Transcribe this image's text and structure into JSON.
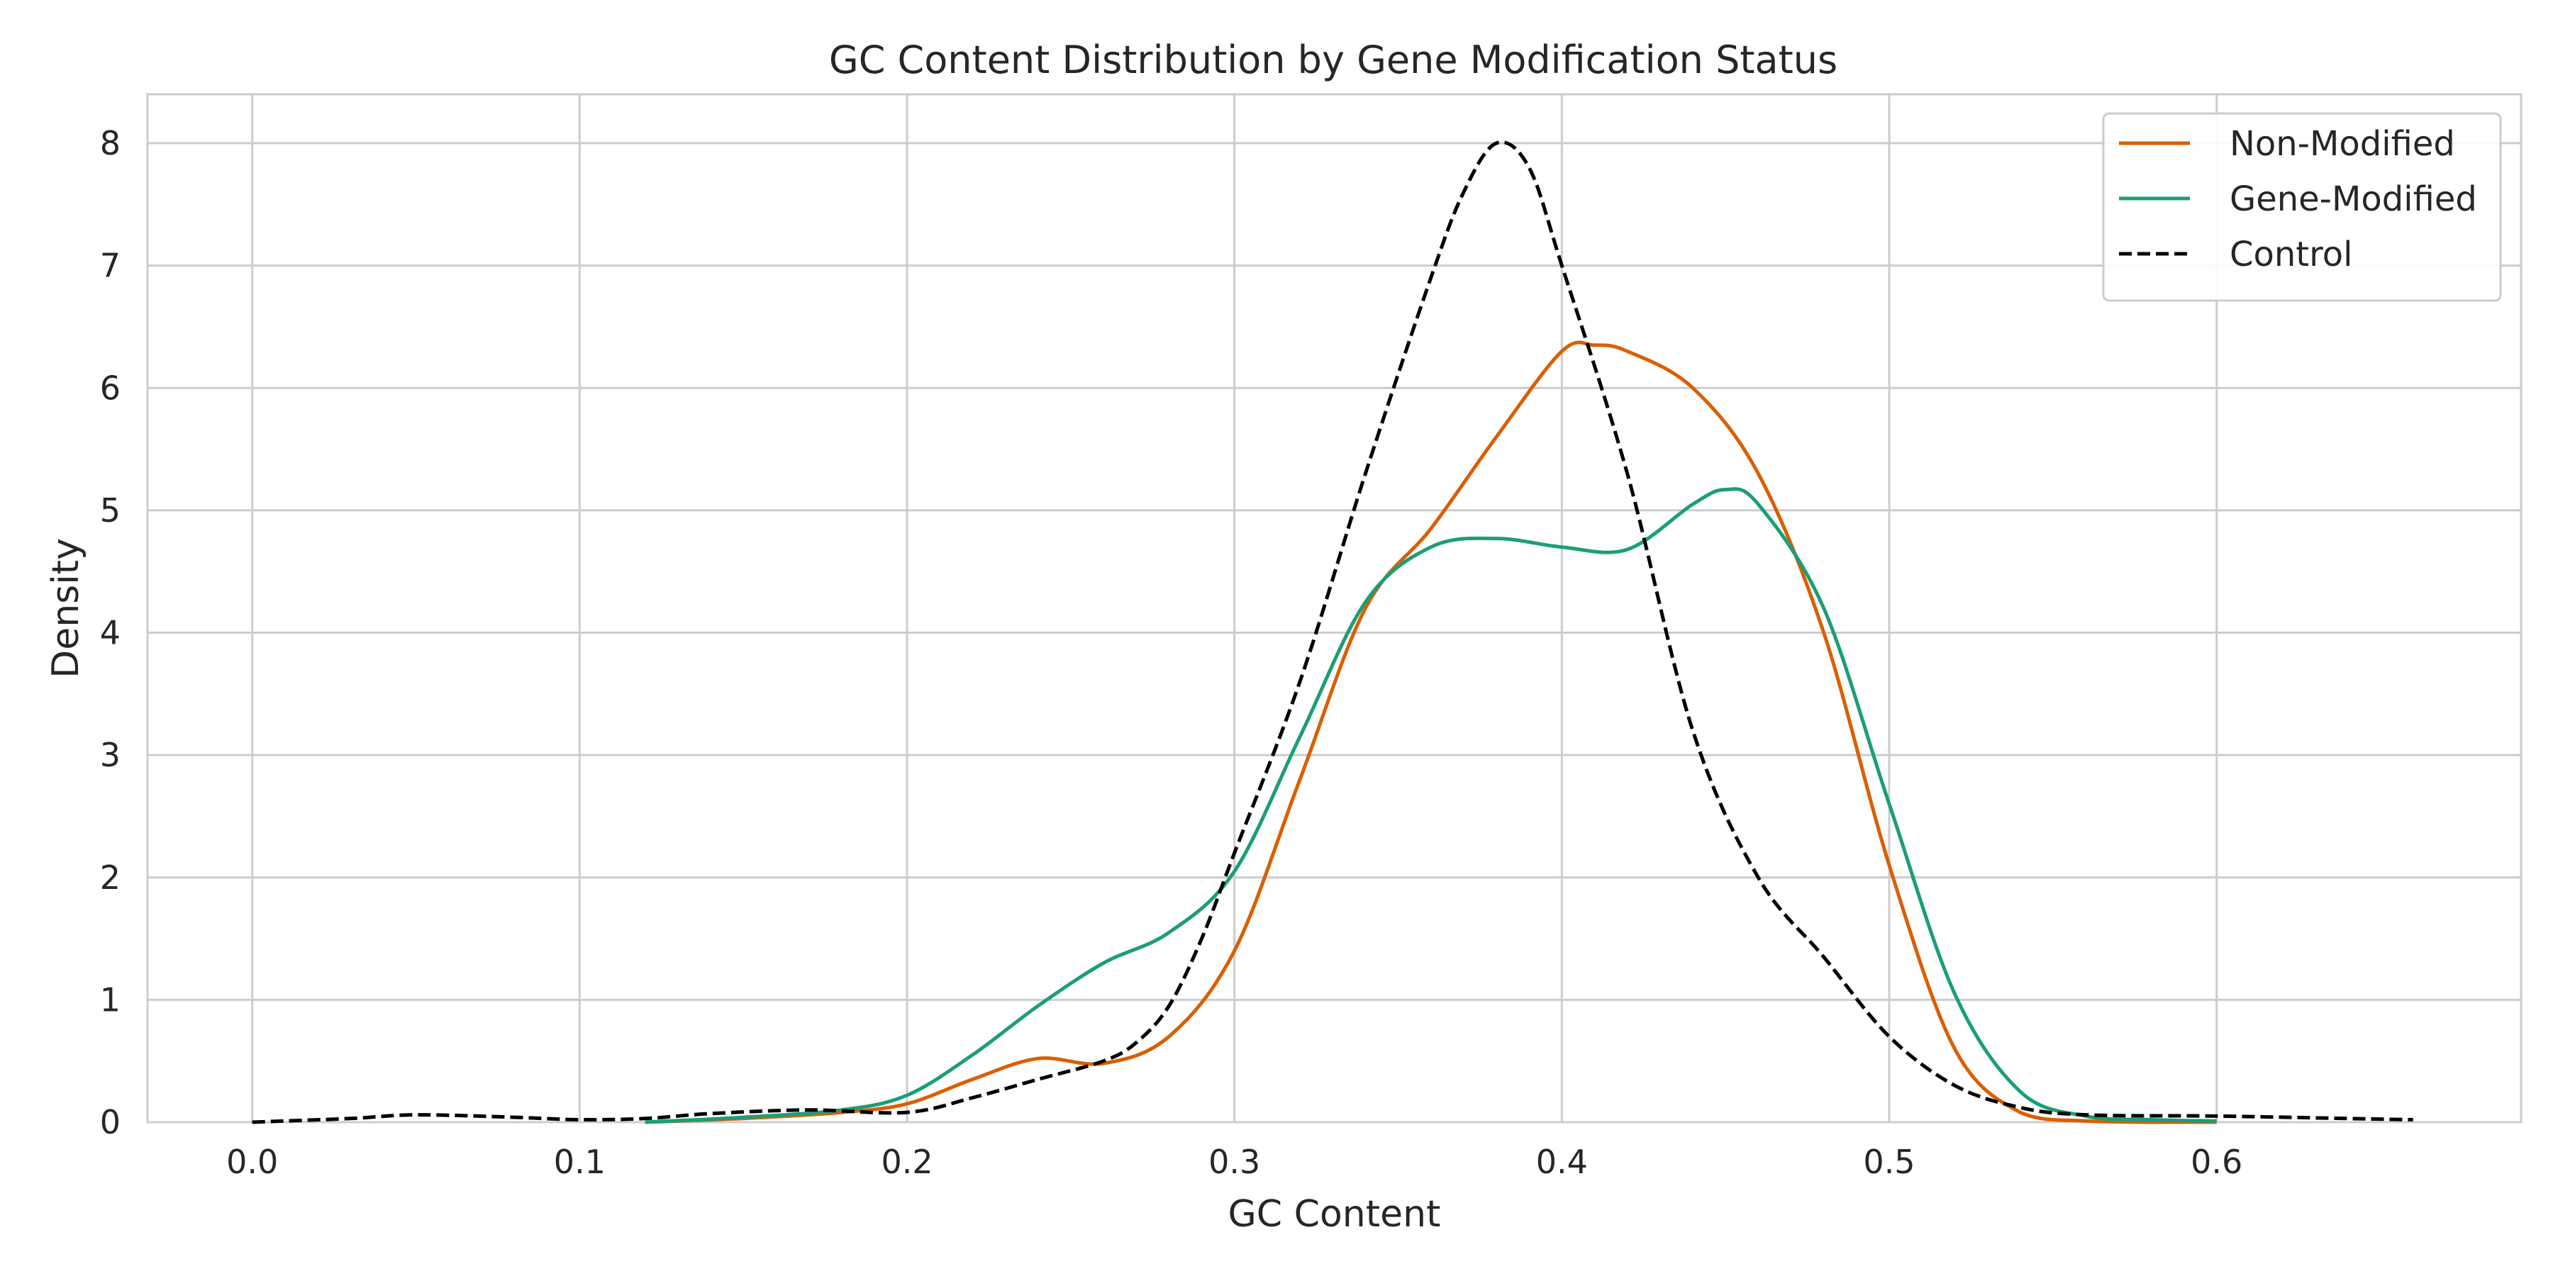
{
  "chart_data": {
    "type": "line",
    "title": "GC Content Distribution by Gene Modification Status",
    "xlabel": "GC Content",
    "ylabel": "Density",
    "xlim": [
      -0.032,
      0.693
    ],
    "ylim": [
      0,
      8.4
    ],
    "x_ticks": [
      0.0,
      0.1,
      0.2,
      0.3,
      0.4,
      0.5,
      0.6
    ],
    "x_tick_labels": [
      "0.0",
      "0.1",
      "0.2",
      "0.3",
      "0.4",
      "0.5",
      "0.6"
    ],
    "y_ticks": [
      0,
      1,
      2,
      3,
      4,
      5,
      6,
      7,
      8
    ],
    "y_tick_labels": [
      "0",
      "1",
      "2",
      "3",
      "4",
      "5",
      "6",
      "7",
      "8"
    ],
    "grid": true,
    "legend_position": "top-right",
    "series": [
      {
        "name": "Non-Modified",
        "color": "#d95f02",
        "dash": "solid",
        "x": [
          0.12,
          0.15,
          0.18,
          0.2,
          0.22,
          0.24,
          0.26,
          0.28,
          0.3,
          0.32,
          0.34,
          0.36,
          0.38,
          0.4,
          0.41,
          0.42,
          0.44,
          0.46,
          0.48,
          0.5,
          0.52,
          0.54,
          0.56,
          0.58,
          0.6
        ],
        "y": [
          0.0,
          0.03,
          0.08,
          0.15,
          0.35,
          0.52,
          0.48,
          0.7,
          1.4,
          2.8,
          4.2,
          4.85,
          5.6,
          6.3,
          6.35,
          6.3,
          6.0,
          5.3,
          4.0,
          2.1,
          0.6,
          0.08,
          0.01,
          0.0,
          0.0
        ]
      },
      {
        "name": "Gene-Modified",
        "color": "#1b9e77",
        "dash": "solid",
        "x": [
          0.12,
          0.15,
          0.18,
          0.2,
          0.22,
          0.24,
          0.26,
          0.28,
          0.3,
          0.32,
          0.34,
          0.36,
          0.38,
          0.4,
          0.42,
          0.44,
          0.45,
          0.46,
          0.48,
          0.5,
          0.52,
          0.54,
          0.56,
          0.58,
          0.6
        ],
        "y": [
          0.0,
          0.04,
          0.1,
          0.22,
          0.55,
          0.95,
          1.3,
          1.55,
          2.05,
          3.15,
          4.25,
          4.7,
          4.77,
          4.7,
          4.68,
          5.05,
          5.17,
          5.05,
          4.2,
          2.6,
          1.05,
          0.25,
          0.05,
          0.02,
          0.01
        ]
      },
      {
        "name": "Control",
        "color": "#000000",
        "dash": "dashed",
        "x": [
          0.0,
          0.03,
          0.05,
          0.08,
          0.1,
          0.12,
          0.14,
          0.17,
          0.2,
          0.22,
          0.24,
          0.26,
          0.27,
          0.28,
          0.29,
          0.3,
          0.32,
          0.34,
          0.36,
          0.37,
          0.38,
          0.39,
          0.4,
          0.42,
          0.44,
          0.46,
          0.48,
          0.5,
          0.52,
          0.54,
          0.56,
          0.6,
          0.64,
          0.66
        ],
        "y": [
          0.0,
          0.03,
          0.06,
          0.04,
          0.02,
          0.03,
          0.07,
          0.1,
          0.08,
          0.2,
          0.35,
          0.5,
          0.65,
          0.95,
          1.5,
          2.2,
          3.6,
          5.3,
          6.9,
          7.6,
          8.0,
          7.8,
          7.0,
          5.3,
          3.2,
          2.0,
          1.35,
          0.7,
          0.3,
          0.12,
          0.06,
          0.05,
          0.03,
          0.02
        ]
      }
    ]
  }
}
